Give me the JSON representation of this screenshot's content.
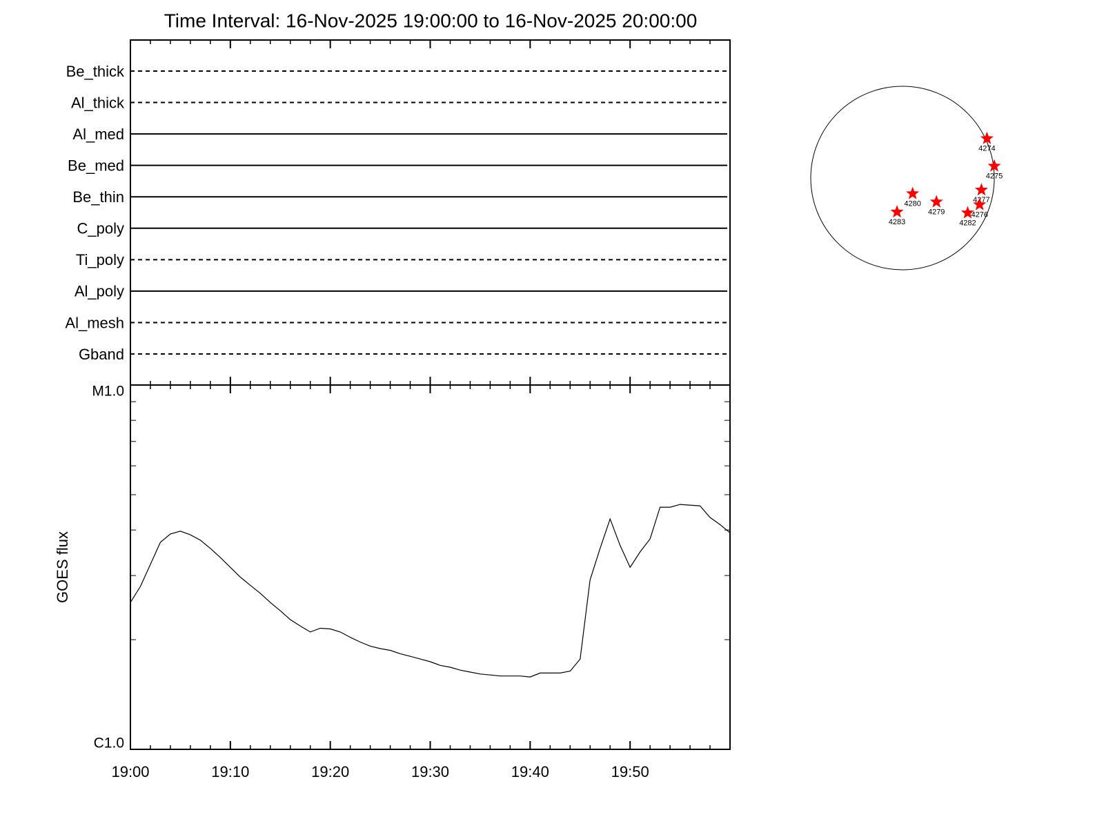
{
  "chart_data": [
    {
      "type": "filter_timeline",
      "title": "Time Interval: 16-Nov-2025 19:00:00 to 16-Nov-2025 20:00:00",
      "categories": [
        "Be_thick",
        "Al_thick",
        "Al_med",
        "Be_med",
        "Be_thin",
        "C_poly",
        "Ti_poly",
        "Al_poly",
        "Al_mesh",
        "Gband"
      ],
      "line_styles": [
        "dashed",
        "dashed",
        "solid",
        "solid",
        "solid",
        "solid",
        "dashed",
        "solid",
        "dashed",
        "dashed"
      ]
    },
    {
      "type": "line",
      "ylabel": "GOES flux",
      "log_y": true,
      "color": "#000000",
      "xlim": [
        "19:00",
        "20:00"
      ],
      "xticks": [
        "19:00",
        "19:10",
        "19:20",
        "19:30",
        "19:40",
        "19:50"
      ],
      "ylim": [
        1e-06,
        1e-05
      ],
      "yticks": [
        {
          "value": 1e-06,
          "label": "C1.0"
        },
        {
          "value": 1e-05,
          "label": "M1.0"
        }
      ],
      "yticks_minor": [
        2e-06,
        3e-06,
        4e-06,
        5e-06,
        6e-06,
        7e-06,
        8e-06,
        9e-06
      ],
      "x": [
        "19:00",
        "19:01",
        "19:02",
        "19:03",
        "19:04",
        "19:05",
        "19:06",
        "19:07",
        "19:08",
        "19:09",
        "19:10",
        "19:11",
        "19:12",
        "19:13",
        "19:14",
        "19:15",
        "19:16",
        "19:17",
        "19:18",
        "19:19",
        "19:20",
        "19:21",
        "19:22",
        "19:23",
        "19:24",
        "19:25",
        "19:26",
        "19:27",
        "19:28",
        "19:29",
        "19:30",
        "19:31",
        "19:32",
        "19:33",
        "19:34",
        "19:35",
        "19:36",
        "19:37",
        "19:38",
        "19:39",
        "19:40",
        "19:41",
        "19:42",
        "19:43",
        "19:44",
        "19:45",
        "19:46",
        "19:47",
        "19:48",
        "19:49",
        "19:50",
        "19:51",
        "19:52",
        "19:53",
        "19:54",
        "19:55",
        "19:56",
        "19:57",
        "19:58",
        "19:59",
        "20:00"
      ],
      "values": [
        2.53e-06,
        2.8e-06,
        3.22e-06,
        3.7e-06,
        3.9e-06,
        3.97e-06,
        3.88e-06,
        3.75e-06,
        3.56e-06,
        3.36e-06,
        3.16e-06,
        2.97e-06,
        2.82e-06,
        2.68e-06,
        2.53e-06,
        2.4e-06,
        2.27e-06,
        2.18e-06,
        2.1e-06,
        2.15e-06,
        2.14e-06,
        2.1e-06,
        2.03e-06,
        1.97e-06,
        1.92e-06,
        1.89e-06,
        1.87e-06,
        1.83e-06,
        1.8e-06,
        1.77e-06,
        1.74e-06,
        1.7e-06,
        1.68e-06,
        1.65e-06,
        1.63e-06,
        1.61e-06,
        1.6e-06,
        1.59e-06,
        1.59e-06,
        1.59e-06,
        1.58e-06,
        1.62e-06,
        1.62e-06,
        1.62e-06,
        1.64e-06,
        1.77e-06,
        2.92e-06,
        3.56e-06,
        4.29e-06,
        3.63e-06,
        3.16e-06,
        3.48e-06,
        3.78e-06,
        4.62e-06,
        4.62e-06,
        4.7e-06,
        4.68e-06,
        4.66e-06,
        4.33e-06,
        4.14e-06,
        3.93e-06
      ]
    },
    {
      "type": "disk_map",
      "color": "#ff0000",
      "xlim": [
        -1,
        1
      ],
      "ylim": [
        -1,
        1
      ],
      "labels": [
        "4274",
        "4275",
        "4277",
        "4276",
        "4282",
        "4279",
        "4280",
        "4283"
      ],
      "x": [
        0.92,
        1.0,
        0.86,
        0.84,
        0.71,
        0.37,
        0.11,
        -0.06
      ],
      "y": [
        0.43,
        0.13,
        -0.13,
        -0.29,
        -0.38,
        -0.26,
        -0.17,
        -0.37
      ]
    }
  ]
}
